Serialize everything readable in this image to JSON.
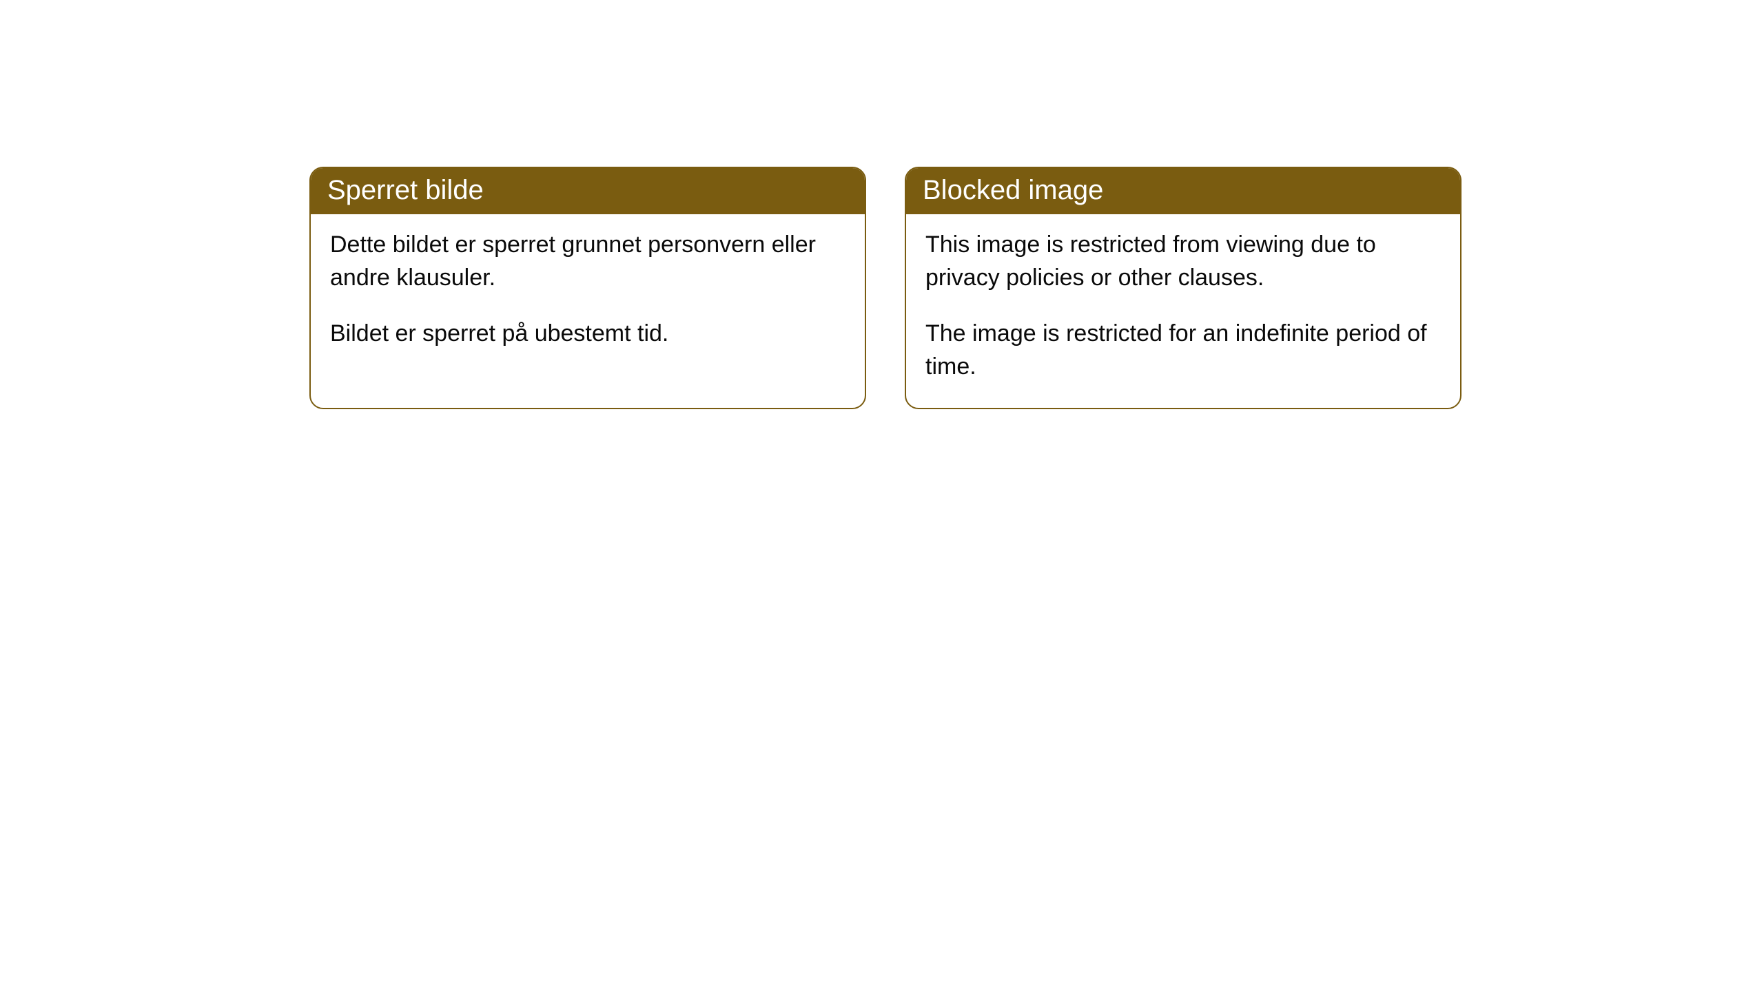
{
  "cards": [
    {
      "title": "Sperret bilde",
      "paragraph1": "Dette bildet er sperret grunnet personvern eller andre klausuler.",
      "paragraph2": "Bildet er sperret på ubestemt tid."
    },
    {
      "title": "Blocked image",
      "paragraph1": "This image is restricted from viewing due to privacy policies or other clauses.",
      "paragraph2": "The image is restricted for an indefinite period of time."
    }
  ],
  "style": {
    "header_bg": "#7a5c10",
    "header_text_color": "#ffffff",
    "border_color": "#7a5c10",
    "body_bg": "#ffffff",
    "body_text_color": "#0a0a0a",
    "border_radius": 20,
    "title_fontsize": 40,
    "body_fontsize": 34
  }
}
